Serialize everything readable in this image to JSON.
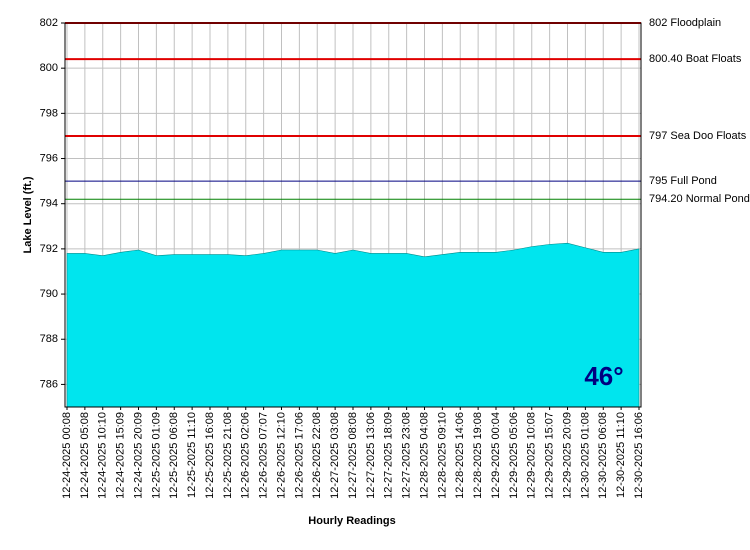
{
  "chart_data": {
    "type": "area",
    "y_label": "Lake Level (ft.)",
    "x_label": "Hourly Readings",
    "badge": "46°",
    "color": "#00e5ee",
    "ylim": [
      785,
      802
    ],
    "yticks": [
      786,
      788,
      790,
      792,
      794,
      796,
      798,
      800,
      802
    ],
    "grid": true,
    "references": [
      {
        "value": 802,
        "label": "802 Floodplain",
        "color": "#e00000"
      },
      {
        "value": 800.4,
        "label": "800.40 Boat Floats",
        "color": "#e00000"
      },
      {
        "value": 797,
        "label": "797 Sea Doo Floats",
        "color": "#e00000"
      },
      {
        "value": 795,
        "label": "795 Full Pond",
        "color": "#000080"
      },
      {
        "value": 794.2,
        "label": "794.20 Normal Pond",
        "color": "#008000"
      }
    ],
    "categories": [
      "12-24-2025 00:08",
      "12-24-2025 05:08",
      "12-24-2025 10:10",
      "12-24-2025 15:09",
      "12-24-2025 20:09",
      "12-25-2025 01:09",
      "12-25-2025 06:08",
      "12-25-2025 11:10",
      "12-25-2025 16:08",
      "12-25-2025 21:08",
      "12-26-2025 02:06",
      "12-26-2025 07:07",
      "12-26-2025 12:10",
      "12-26-2025 17:06",
      "12-26-2025 22:08",
      "12-27-2025 03:08",
      "12-27-2025 08:08",
      "12-27-2025 13:06",
      "12-27-2025 18:09",
      "12-27-2025 23:08",
      "12-28-2025 04:08",
      "12-28-2025 09:10",
      "12-28-2025 14:06",
      "12-28-2025 19:08",
      "12-29-2025 00:04",
      "12-29-2025 05:06",
      "12-29-2025 10:08",
      "12-29-2025 15:07",
      "12-29-2025 20:09",
      "12-30-2025 01:08",
      "12-30-2025 06:08",
      "12-30-2025 11:10",
      "12-30-2025 16:06"
    ],
    "values": [
      791.8,
      791.8,
      791.7,
      791.85,
      791.95,
      791.7,
      791.75,
      791.75,
      791.75,
      791.75,
      791.7,
      791.8,
      791.95,
      791.95,
      791.95,
      791.8,
      791.95,
      791.8,
      791.8,
      791.8,
      791.65,
      791.75,
      791.85,
      791.85,
      791.85,
      791.95,
      792.1,
      792.2,
      792.25,
      792.05,
      791.85,
      791.85,
      792.0
    ]
  }
}
